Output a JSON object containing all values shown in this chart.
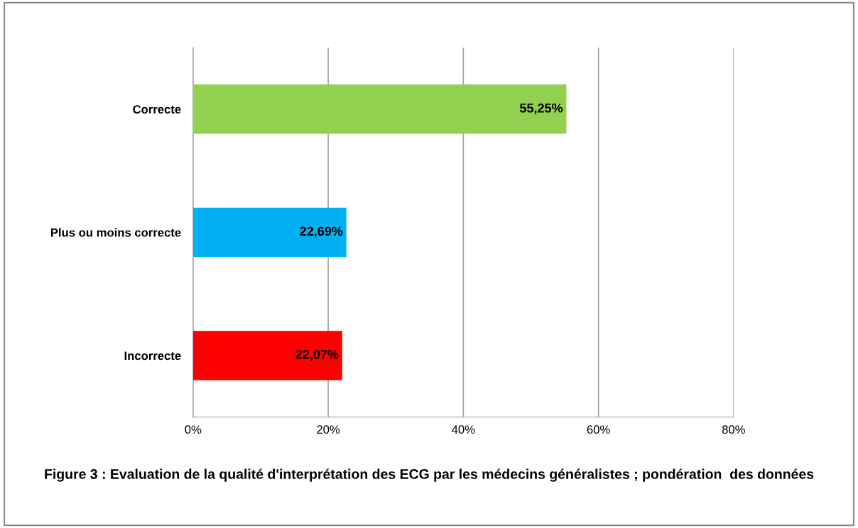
{
  "chart_data": {
    "type": "bar",
    "orientation": "horizontal",
    "title": "Figure 3 : Evaluation de la qualité d'interprétation des ECG par les médecins généralistes ; pondération  des données",
    "categories": [
      "Correcte",
      "Plus ou moins correcte",
      "Incorrecte"
    ],
    "values": [
      55.25,
      22.69,
      22.07
    ],
    "colors": [
      "#92d050",
      "#00b0f0",
      "#ff0000"
    ],
    "value_labels": [
      "55,25%",
      "22,69%",
      "22,07%"
    ],
    "xlim": [
      0,
      80
    ],
    "xticks": [
      {
        "value": 0,
        "label": "0%"
      },
      {
        "value": 20,
        "label": "20%"
      },
      {
        "value": 40,
        "label": "40%"
      },
      {
        "value": 60,
        "label": "60%"
      },
      {
        "value": 80,
        "label": "80%"
      }
    ],
    "grid": "x"
  }
}
